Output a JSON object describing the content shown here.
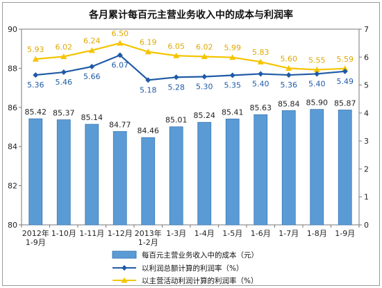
{
  "chart_data": {
    "type": "bar",
    "title": "各月累计每百元主营业务收入中的成本与利润率",
    "categories": [
      "2012年\n1-9月",
      "1-10月",
      "1-11月",
      "1-12月",
      "2013年\n1-2月",
      "1-3月",
      "1-4月",
      "1-5月",
      "1-6月",
      "1-7月",
      "1-8月",
      "1-9月"
    ],
    "ylim_left": [
      80,
      90
    ],
    "ylim_right": [
      0,
      7
    ],
    "left_ticks": [
      80,
      82,
      84,
      86,
      88,
      90
    ],
    "right_ticks": [
      0,
      1,
      2,
      3,
      4,
      5,
      6,
      7
    ],
    "series": [
      {
        "name": "每百元主营业务收入中的成本（元）",
        "type": "bar",
        "axis": "left",
        "color": "#5b9bd5",
        "values": [
          85.42,
          85.37,
          85.14,
          84.77,
          84.46,
          85.01,
          85.24,
          85.41,
          85.63,
          85.84,
          85.9,
          85.87
        ]
      },
      {
        "name": "以利润总额计算的利润率（%）",
        "type": "line",
        "axis": "right",
        "color": "#1f5aa6",
        "marker": "diamond",
        "values": [
          5.36,
          5.46,
          5.66,
          6.07,
          5.18,
          5.28,
          5.3,
          5.35,
          5.4,
          5.36,
          5.4,
          5.49
        ]
      },
      {
        "name": "以主营活动利润计算的利润率（%）",
        "type": "line",
        "axis": "right",
        "color": "#f5c400",
        "marker": "triangle",
        "values": [
          5.93,
          6.02,
          6.24,
          6.5,
          6.19,
          6.05,
          6.02,
          5.99,
          5.83,
          5.6,
          5.55,
          5.59
        ]
      }
    ],
    "legend_position": "bottom"
  }
}
